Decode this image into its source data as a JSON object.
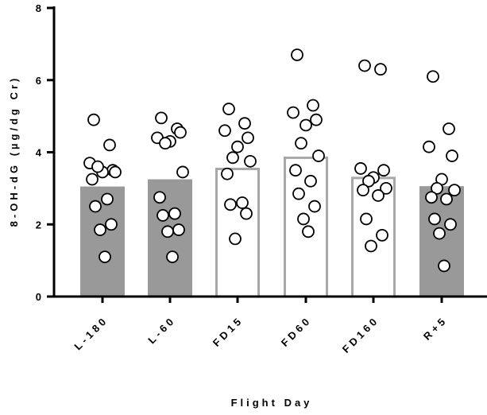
{
  "chart_data": {
    "type": "bar",
    "title": "",
    "xlabel": "Flight Day",
    "ylabel": "8-OH-dG (µg/dg Cr)",
    "ylim": [
      0,
      8
    ],
    "yticks": [
      "0",
      "2",
      "4",
      "6",
      "8"
    ],
    "grid": false,
    "legend": "none",
    "categories": [
      "L-180",
      "L-60",
      "FD15",
      "FD60",
      "FD160",
      "R+5"
    ],
    "bar_values": [
      3.05,
      3.25,
      3.57,
      3.88,
      3.32,
      3.06
    ],
    "bar_fill": [
      "filled",
      "filled",
      "open",
      "open",
      "open",
      "filled"
    ],
    "points": [
      [
        4.9,
        4.2,
        3.7,
        3.5,
        3.45,
        3.6,
        3.45,
        3.25,
        2.7,
        2.5,
        2.0,
        1.85,
        1.1
      ],
      [
        4.95,
        4.65,
        4.4,
        4.55,
        4.3,
        4.25,
        3.45,
        2.75,
        2.3,
        2.25,
        1.85,
        1.8,
        1.1
      ],
      [
        5.2,
        4.8,
        4.6,
        4.4,
        4.15,
        3.85,
        3.75,
        3.4,
        2.6,
        2.55,
        2.3,
        1.6
      ],
      [
        6.7,
        5.3,
        5.1,
        4.9,
        4.75,
        4.25,
        3.9,
        3.5,
        3.2,
        2.85,
        2.5,
        2.15,
        1.8
      ],
      [
        6.4,
        6.3,
        3.55,
        3.5,
        3.3,
        3.2,
        3.0,
        2.95,
        2.8,
        2.15,
        1.7,
        1.4
      ],
      [
        6.1,
        4.65,
        4.15,
        3.9,
        3.25,
        3.0,
        2.95,
        2.75,
        2.7,
        2.15,
        2.0,
        1.75,
        0.85
      ]
    ],
    "colors": {
      "bar_fill": "#999999",
      "open_bar_edge": "#a8a8a8",
      "marker_face": "#ffffff",
      "marker_edge": "#000000",
      "axis": "#000000"
    }
  }
}
